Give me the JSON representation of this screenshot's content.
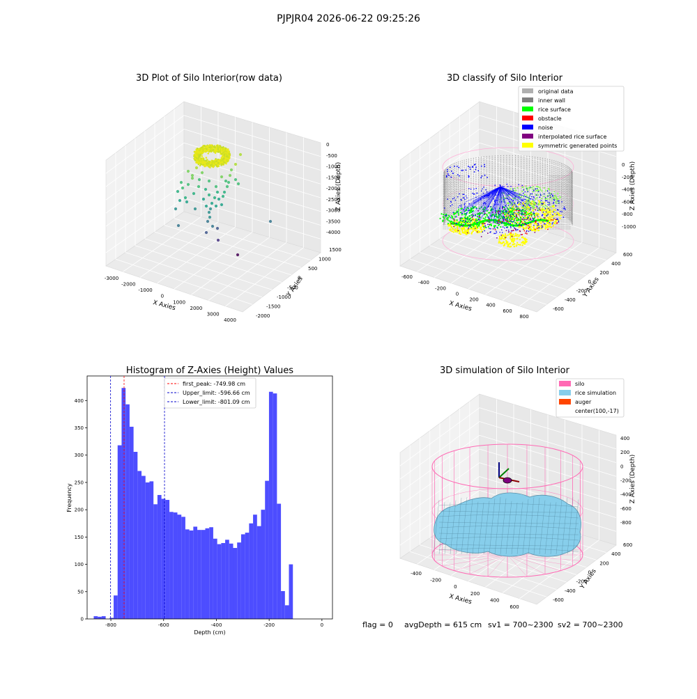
{
  "suptitle": "PJPJR04 2026-06-22 09:25:26",
  "footer": {
    "flag": "flag = 0",
    "avg_depth": "avgDepth = 615 cm",
    "sv1": "sv1 = 700~2300",
    "sv2": "sv2 = 700~2300"
  },
  "colors": {
    "hist_bar": "#4d4dff",
    "first_peak": "#ff0000",
    "limits": "#0000cc",
    "original": "#b0b0b0",
    "inner_wall": "#808080",
    "rice_surface": "#00ff00",
    "obstacle": "#ff0000",
    "noise": "#0000ff",
    "interp_surface": "#800080",
    "symmetric": "#ffff00",
    "silo": "#ff69b4",
    "rice_sim": "#87ceeb",
    "auger": "#ff4500"
  },
  "chart_data": [
    {
      "type": "scatter",
      "title": "3D Plot of Silo Interior(row data)",
      "xlabel": "X Axies",
      "ylabel": "Y Axies",
      "zlabel": "Z Axies (Depth)",
      "x_ticks": [
        "-3000",
        "-2000",
        "-1000",
        "0",
        "1000",
        "2000",
        "3000",
        "4000"
      ],
      "y_ticks": [
        "-2000",
        "-1500",
        "-1000",
        "-500",
        "0",
        "500",
        "1000",
        "1500"
      ],
      "z_ticks": [
        "0",
        "-500",
        "-1000",
        "-1500",
        "-2000",
        "-2500",
        "-3000",
        "-3500",
        "-4000"
      ],
      "xlim": [
        -3300,
        4200
      ],
      "ylim": [
        -2100,
        1700
      ],
      "zlim": [
        -4300,
        300
      ]
    },
    {
      "type": "scatter",
      "title": "3D classify of Silo Interior",
      "xlabel": "X Axies",
      "ylabel": "Y Axies",
      "zlabel": "Z Axies (Depth)",
      "x_ticks": [
        "-600",
        "-400",
        "-200",
        "0",
        "200",
        "400",
        "600",
        "800"
      ],
      "y_ticks": [
        "-600",
        "-400",
        "-200",
        "0",
        "200",
        "400",
        "600"
      ],
      "z_ticks": [
        "0",
        "-200",
        "-400",
        "-600",
        "-800",
        "-1000"
      ],
      "legend": [
        {
          "label": "original data",
          "color": "#b0b0b0"
        },
        {
          "label": "inner wall",
          "color": "#808080"
        },
        {
          "label": "rice surface",
          "color": "#00ff00"
        },
        {
          "label": "obstacle",
          "color": "#ff0000"
        },
        {
          "label": "noise",
          "color": "#0000ff"
        },
        {
          "label": "interpolated rice surface",
          "color": "#800080"
        },
        {
          "label": "symmetric generated points",
          "color": "#ffff00"
        }
      ],
      "legend_placement": "top-right"
    },
    {
      "type": "bar",
      "title": "Histogram of Z-Axies (Height) Values",
      "xlabel": "Depth (cm)",
      "ylabel": "Frequency",
      "xlim": [
        -890,
        40
      ],
      "ylim": [
        0,
        445
      ],
      "x_ticks": [
        -800,
        -600,
        -400,
        -200,
        0
      ],
      "y_ticks": [
        0,
        50,
        100,
        150,
        200,
        250,
        300,
        350,
        400
      ],
      "bin_start": -865,
      "bin_width": 15.1,
      "values": [
        5,
        4,
        5,
        0,
        2,
        43,
        318,
        423,
        393,
        352,
        306,
        271,
        262,
        250,
        252,
        210,
        227,
        220,
        218,
        196,
        195,
        191,
        187,
        164,
        162,
        169,
        163,
        163,
        166,
        168,
        147,
        137,
        139,
        145,
        138,
        130,
        140,
        155,
        158,
        175,
        191,
        170,
        200,
        253,
        416,
        413,
        211,
        51,
        25,
        100
      ],
      "lines": [
        {
          "label": "first_peak: -749.98 cm",
          "value": -749.98,
          "color": "#ff0000"
        },
        {
          "label": "Upper_limit: -596.66 cm",
          "value": -596.66,
          "color": "#0000cc"
        },
        {
          "label": "Lower_limit: -801.09 cm",
          "value": -801.09,
          "color": "#0000cc"
        }
      ],
      "legend_placement": "top-center"
    },
    {
      "type": "area",
      "title": "3D simulation of Silo Interior",
      "xlabel": "X Axies",
      "ylabel": "Y Axies",
      "zlabel": "Z Axies (Depth)",
      "x_ticks": [
        "-400",
        "-200",
        "0",
        "200",
        "400",
        "600"
      ],
      "y_ticks": [
        "-600",
        "-400",
        "-200",
        "0",
        "200",
        "400",
        "600"
      ],
      "z_ticks": [
        "400",
        "200",
        "0",
        "-200",
        "-400",
        "-600",
        "-800"
      ],
      "legend": [
        {
          "label": "silo",
          "color": "#ff69b4"
        },
        {
          "label": "rice simulation",
          "color": "#87ceeb"
        },
        {
          "label": "auger",
          "color": "#ff4500"
        },
        {
          "label": "center(100,-17)",
          "color": ""
        }
      ],
      "legend_placement": "top-right"
    }
  ]
}
